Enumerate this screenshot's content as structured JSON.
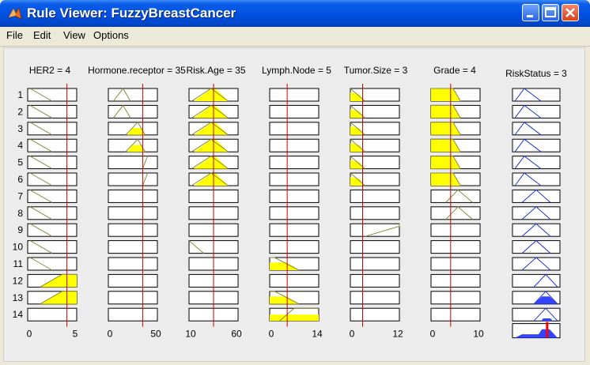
{
  "window": {
    "title": "Rule Viewer: FuzzyBreastCancer"
  },
  "menu": [
    "File",
    "Edit",
    "View",
    "Options"
  ],
  "columns": [
    {
      "header": "HER2 = 4",
      "range": [
        0,
        5
      ],
      "value": 4,
      "ticks": [
        "0",
        "5"
      ]
    },
    {
      "header": "Hormone.receptor = 35",
      "range": [
        0,
        50
      ],
      "value": 35,
      "ticks": [
        "0",
        "50"
      ]
    },
    {
      "header": "Risk.Age = 35",
      "range": [
        10,
        60
      ],
      "value": 35,
      "ticks": [
        "10",
        "60"
      ]
    },
    {
      "header": "Lymph.Node = 5",
      "range": [
        0,
        14
      ],
      "value": 5,
      "ticks": [
        "0",
        "14"
      ]
    },
    {
      "header": "Tumor.Size = 3",
      "range": [
        0,
        12
      ],
      "value": 3,
      "ticks": [
        "0",
        "12"
      ]
    },
    {
      "header": "Grade = 4",
      "range": [
        0,
        10
      ],
      "value": 4,
      "ticks": [
        "0",
        "10"
      ]
    }
  ],
  "output": {
    "header": "RiskStatus = 3"
  },
  "rows": [
    "1",
    "2",
    "3",
    "4",
    "5",
    "6",
    "7",
    "8",
    "9",
    "10",
    "11",
    "12",
    "13",
    "14"
  ],
  "colors": {
    "fill": "#ffff00",
    "output_fill": "#3344ff",
    "line": "#8a8a3a",
    "marker": "#cc0000",
    "output_marker": "#ff0000"
  }
}
